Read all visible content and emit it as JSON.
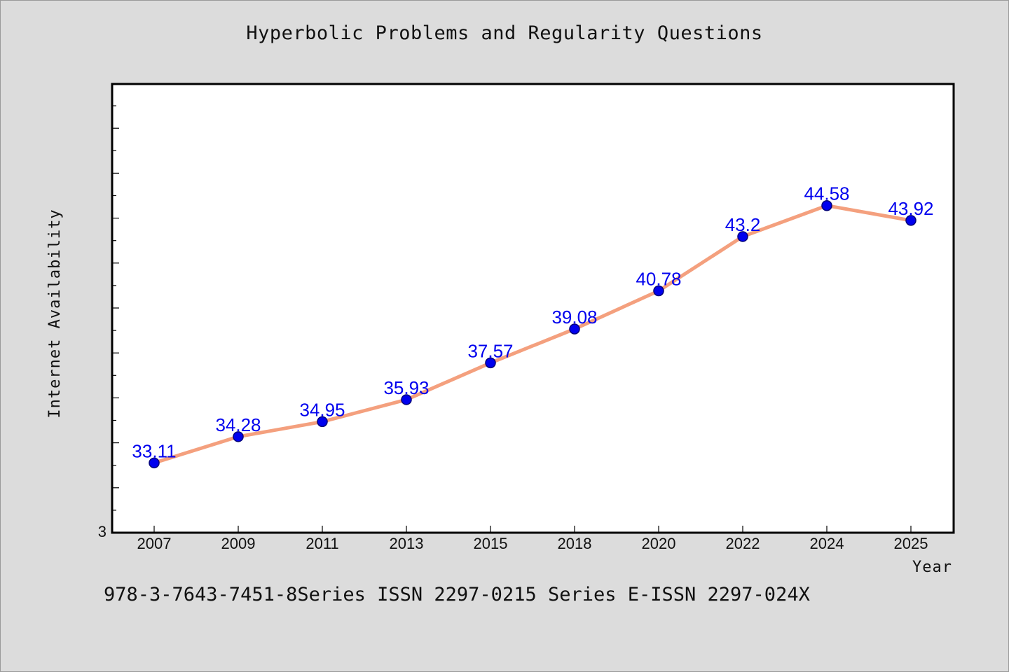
{
  "page": {
    "title": "Hyperbolic Problems and Regularity Questions",
    "footer": "978-3-7643-7451-8Series ISSN 2297-0215 Series E-ISSN 2297-024X"
  },
  "chart_data": {
    "type": "line",
    "title": "Hyperbolic Problems and Regularity Questions",
    "xlabel": "Year",
    "ylabel": "Internet Availability",
    "categories": [
      "2007",
      "2009",
      "2011",
      "2013",
      "2015",
      "2018",
      "2020",
      "2022",
      "2024",
      "2025"
    ],
    "series": [
      {
        "values": [
          33.11,
          34.28,
          34.95,
          35.93,
          37.57,
          39.08,
          40.78,
          43.2,
          44.58,
          43.92
        ],
        "data_labels": [
          "33.11",
          "34.28",
          "34.95",
          "35.93",
          "37.57",
          "39.08",
          "40.78",
          "43.2",
          "44.58",
          "43.92"
        ]
      }
    ],
    "y_tick_labels": [
      "3"
    ],
    "ylim": [
      30,
      50
    ],
    "grid": false,
    "legend": "none",
    "colors": {
      "line": "#f4a07e",
      "marker": "#0000ee",
      "label": "#0000ee",
      "background": "#dcdcdc",
      "plot_background": "#ffffff"
    }
  }
}
